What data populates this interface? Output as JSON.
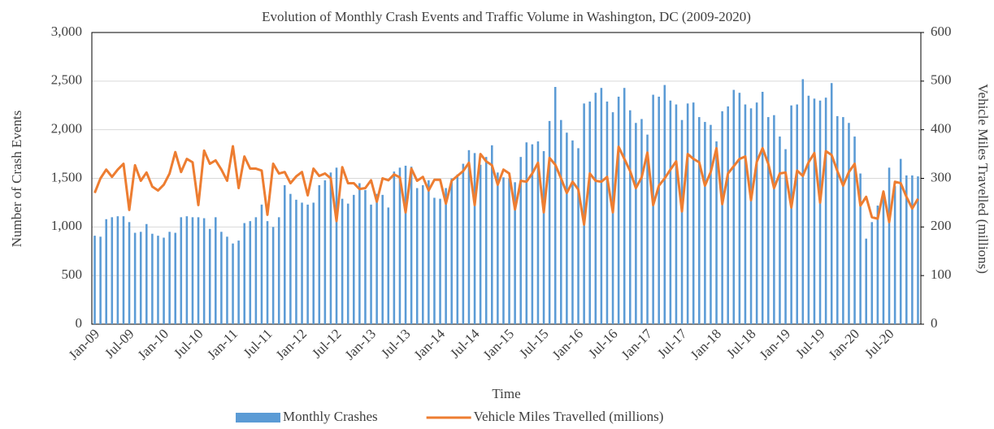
{
  "chart_data": {
    "type": "bar-line",
    "title": "Evolution of Monthly Crash Events and Traffic Volume in Washington, DC (2009-2020)",
    "xlabel": "Time",
    "ylabel": "Number of Crash Events",
    "y2label": "Vehicle Miles Travelled (millions)",
    "categories": [
      "Jan-09",
      null,
      null,
      null,
      null,
      null,
      "Jul-09",
      null,
      null,
      null,
      null,
      null,
      "Jan-10",
      null,
      null,
      null,
      null,
      null,
      "Jul-10",
      null,
      null,
      null,
      null,
      null,
      "Jan-11",
      null,
      null,
      null,
      null,
      null,
      "Jul-11",
      null,
      null,
      null,
      null,
      null,
      "Jan-12",
      null,
      null,
      null,
      null,
      null,
      "Jul-12",
      null,
      null,
      null,
      null,
      null,
      "Jan-13",
      null,
      null,
      null,
      null,
      null,
      "Jul-13",
      null,
      null,
      null,
      null,
      null,
      "Jan-14",
      null,
      null,
      null,
      null,
      null,
      "Jul-14",
      null,
      null,
      null,
      null,
      null,
      "Jan-15",
      null,
      null,
      null,
      null,
      null,
      "Jul-15",
      null,
      null,
      null,
      null,
      null,
      "Jan-16",
      null,
      null,
      null,
      null,
      null,
      "Jul-16",
      null,
      null,
      null,
      null,
      null,
      "Jan-17",
      null,
      null,
      null,
      null,
      null,
      "Jul-17",
      null,
      null,
      null,
      null,
      null,
      "Jan-18",
      null,
      null,
      null,
      null,
      null,
      "Jul-18",
      null,
      null,
      null,
      null,
      null,
      "Jan-19",
      null,
      null,
      null,
      null,
      null,
      "Jul-19",
      null,
      null,
      null,
      null,
      null,
      "Jan-20",
      null,
      null,
      null,
      null,
      null,
      "Jul-20",
      null,
      null,
      null,
      null,
      null
    ],
    "series": [
      {
        "name": "Monthly Crashes",
        "kind": "bar",
        "color": "#5b9bd5",
        "values": [
          910,
          900,
          1080,
          1100,
          1110,
          1110,
          1050,
          940,
          950,
          1030,
          930,
          910,
          890,
          950,
          940,
          1100,
          1110,
          1100,
          1100,
          1090,
          980,
          1100,
          950,
          900,
          830,
          860,
          1040,
          1060,
          1100,
          1230,
          1060,
          1000,
          1100,
          1430,
          1340,
          1280,
          1250,
          1230,
          1250,
          1430,
          1480,
          1560,
          1610,
          1290,
          1240,
          1330,
          1450,
          1380,
          1230,
          1340,
          1330,
          1200,
          1570,
          1610,
          1630,
          1620,
          1400,
          1430,
          1480,
          1300,
          1290,
          1400,
          1500,
          1540,
          1650,
          1790,
          1760,
          1640,
          1720,
          1840,
          1560,
          1510,
          1500,
          1460,
          1720,
          1870,
          1850,
          1880,
          1780,
          2090,
          2440,
          2100,
          1970,
          1890,
          1810,
          2270,
          2290,
          2380,
          2430,
          2290,
          2180,
          2340,
          2430,
          2200,
          2070,
          2110,
          1950,
          2360,
          2340,
          2460,
          2300,
          2260,
          2100,
          2270,
          2280,
          2130,
          2080,
          2050,
          1880,
          2190,
          2240,
          2410,
          2380,
          2260,
          2220,
          2280,
          2390,
          2130,
          2150,
          1930,
          1800,
          2250,
          2260,
          2520,
          2350,
          2320,
          2300,
          2330,
          2480,
          2140,
          2130,
          2070,
          1930,
          1550,
          880,
          1050,
          1220,
          1300,
          1610,
          1420,
          1700,
          1530,
          1530,
          1520
        ]
      },
      {
        "name": "Vehicle Miles Travelled (millions)",
        "kind": "line",
        "axis": "y2",
        "color": "#ed7d31",
        "values": [
          270,
          300,
          318,
          303,
          318,
          330,
          235,
          327,
          295,
          312,
          283,
          275,
          287,
          310,
          354,
          313,
          340,
          333,
          245,
          357,
          330,
          337,
          318,
          295,
          366,
          280,
          345,
          320,
          320,
          316,
          225,
          330,
          310,
          313,
          290,
          304,
          313,
          265,
          320,
          305,
          310,
          300,
          212,
          323,
          290,
          290,
          278,
          280,
          296,
          252,
          300,
          296,
          308,
          302,
          230,
          320,
          295,
          303,
          275,
          297,
          297,
          248,
          295,
          305,
          315,
          332,
          245,
          350,
          335,
          327,
          287,
          318,
          310,
          236,
          295,
          293,
          310,
          332,
          230,
          342,
          328,
          300,
          270,
          293,
          277,
          205,
          310,
          295,
          293,
          303,
          230,
          365,
          340,
          315,
          280,
          302,
          353,
          245,
          285,
          300,
          318,
          335,
          232,
          350,
          340,
          333,
          285,
          313,
          362,
          247,
          310,
          325,
          340,
          345,
          255,
          334,
          362,
          330,
          280,
          310,
          312,
          240,
          316,
          305,
          333,
          352,
          250,
          356,
          348,
          315,
          285,
          313,
          330,
          244,
          262,
          220,
          217,
          273,
          210,
          293,
          290,
          262,
          238,
          258
        ]
      }
    ],
    "ylim": [
      0,
      3000
    ],
    "yticks": [
      0,
      500,
      {
        "value": 1000,
        "label": "1,000"
      },
      {
        "value": 1500,
        "label": "1,500"
      },
      {
        "value": 2000,
        "label": "2,000"
      },
      {
        "value": 2500,
        "label": "2,500"
      },
      {
        "value": 3000,
        "label": "3,000"
      }
    ],
    "y2lim": [
      0,
      600
    ],
    "y2ticks": [
      0,
      100,
      200,
      300,
      400,
      500,
      600
    ],
    "grid": true,
    "legend": "bottom"
  }
}
